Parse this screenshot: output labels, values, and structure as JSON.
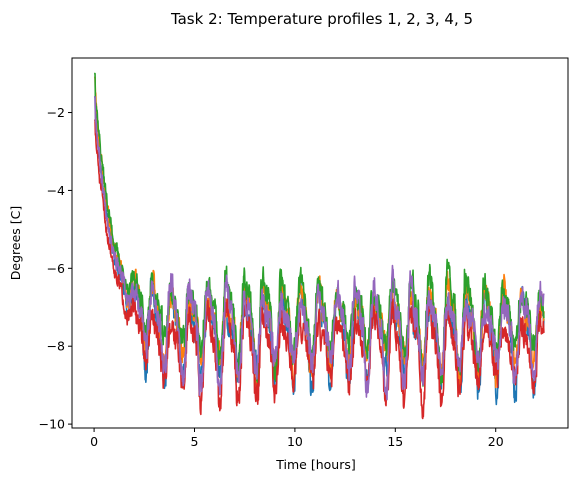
{
  "chart_data": {
    "type": "line",
    "title": "Task 2: Temperature profiles 1, 2, 3, 4, 5",
    "xlabel": "Time [hours]",
    "ylabel": "Degrees [C]",
    "xlim": [
      -1.1,
      23.6
    ],
    "ylim": [
      -10.1,
      -0.6
    ],
    "xticks": [
      0,
      5,
      10,
      15,
      20
    ],
    "yticks": [
      -10,
      -8,
      -6,
      -4,
      -2
    ],
    "xtick_labels": [
      "0",
      "5",
      "10",
      "15",
      "20"
    ],
    "ytick_labels": [
      "−10",
      "−8",
      "−6",
      "−4",
      "−2"
    ],
    "grid": false,
    "legend": "none",
    "description_of_shape": "Five noisy temperature series start near -1 to -2 C at t=0, decay exponentially to about -7.5 C by ~2.5 h, then oscillate with ~0.9 h period between about -9 and -6 C until ~22.5 h.",
    "series": [
      {
        "color": "#1f77b4",
        "start": -1.6,
        "steady": -7.6,
        "amp": 1.05,
        "offset": -0.15,
        "seed": 11
      },
      {
        "color": "#ff7f0e",
        "start": -1.1,
        "steady": -7.5,
        "amp": 0.95,
        "offset": 0.05,
        "seed": 23
      },
      {
        "color": "#2ca02c",
        "start": -1.0,
        "steady": -7.4,
        "amp": 1.0,
        "offset": 0.15,
        "seed": 37
      },
      {
        "color": "#d62728",
        "start": -2.2,
        "steady": -7.8,
        "amp": 1.0,
        "offset": -0.3,
        "seed": 51
      },
      {
        "color": "#9467bd",
        "start": -1.6,
        "steady": -7.55,
        "amp": 1.05,
        "offset": 0.0,
        "seed": 67
      }
    ],
    "t_end": 22.4,
    "samples": 1400,
    "decay_tau": 0.9,
    "period": 0.92
  }
}
